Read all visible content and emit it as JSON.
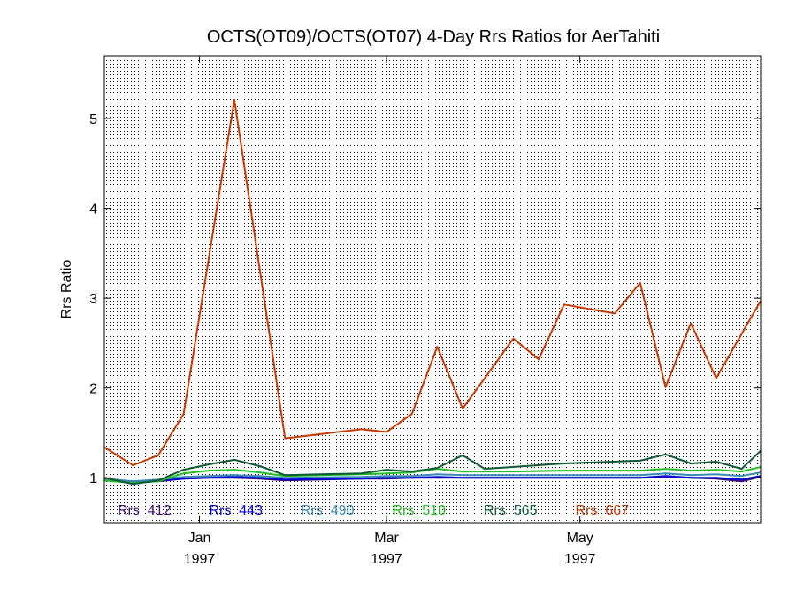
{
  "chart_data": {
    "type": "line",
    "title": "OCTS(OT09)/OCTS(OT07) 4-Day Rrs Ratios for AerTahiti",
    "ylabel": "Rrs Ratio",
    "xlabel": "",
    "xlim": [
      "1996-12-02",
      "1997-06-27"
    ],
    "ylim": [
      0.5,
      5.7
    ],
    "grid": true,
    "legend_position": "bottom",
    "x_ticks": [
      {
        "date": "1997-01-01",
        "month": "Jan",
        "year": "1997"
      },
      {
        "date": "1997-03-01",
        "month": "Mar",
        "year": "1997"
      },
      {
        "date": "1997-05-01",
        "month": "May",
        "year": "1997"
      }
    ],
    "y_ticks": [
      {
        "value": 1,
        "label": "1"
      },
      {
        "value": 2,
        "label": "2"
      },
      {
        "value": 3,
        "label": "3"
      },
      {
        "value": 4,
        "label": "4"
      },
      {
        "value": 5,
        "label": "5"
      }
    ],
    "series": [
      {
        "name": "Rrs_412",
        "color": "#3a0a78",
        "points": [
          [
            "1996-12-02",
            0.98
          ],
          [
            "1996-12-11",
            0.95
          ],
          [
            "1996-12-19",
            0.96
          ],
          [
            "1996-12-27",
            0.99
          ],
          [
            "1997-01-04",
            1.0
          ],
          [
            "1997-01-12",
            1.0
          ],
          [
            "1997-01-20",
            0.99
          ],
          [
            "1997-01-28",
            0.97
          ],
          [
            "1997-02-21",
            0.99
          ],
          [
            "1997-03-01",
            0.99
          ],
          [
            "1997-03-09",
            1.0
          ],
          [
            "1997-03-17",
            1.0
          ],
          [
            "1997-03-25",
            1.0
          ],
          [
            "1997-04-10",
            1.0
          ],
          [
            "1997-04-26",
            1.0
          ],
          [
            "1997-05-20",
            1.0
          ],
          [
            "1997-05-28",
            1.01
          ],
          [
            "1997-06-05",
            1.0
          ],
          [
            "1997-06-13",
            0.99
          ],
          [
            "1997-06-21",
            0.96
          ],
          [
            "1997-06-27",
            1.01
          ]
        ]
      },
      {
        "name": "Rrs_443",
        "color": "#0000d8",
        "points": [
          [
            "1996-12-02",
            0.98
          ],
          [
            "1996-12-11",
            0.96
          ],
          [
            "1996-12-19",
            0.97
          ],
          [
            "1996-12-27",
            0.99
          ],
          [
            "1997-01-04",
            1.0
          ],
          [
            "1997-01-12",
            1.01
          ],
          [
            "1997-01-20",
            1.0
          ],
          [
            "1997-01-28",
            0.98
          ],
          [
            "1997-02-21",
            0.99
          ],
          [
            "1997-03-01",
            1.0
          ],
          [
            "1997-03-09",
            1.0
          ],
          [
            "1997-03-17",
            1.01
          ],
          [
            "1997-03-25",
            1.0
          ],
          [
            "1997-04-10",
            1.0
          ],
          [
            "1997-04-26",
            1.0
          ],
          [
            "1997-05-20",
            1.0
          ],
          [
            "1997-05-28",
            1.02
          ],
          [
            "1997-06-05",
            1.0
          ],
          [
            "1997-06-13",
            1.0
          ],
          [
            "1997-06-21",
            0.98
          ],
          [
            "1997-06-27",
            1.02
          ]
        ]
      },
      {
        "name": "Rrs_490",
        "color": "#3a8ab8",
        "points": [
          [
            "1996-12-02",
            0.99
          ],
          [
            "1996-12-11",
            0.96
          ],
          [
            "1996-12-19",
            0.98
          ],
          [
            "1996-12-27",
            1.01
          ],
          [
            "1997-01-04",
            1.02
          ],
          [
            "1997-01-12",
            1.03
          ],
          [
            "1997-01-20",
            1.02
          ],
          [
            "1997-01-28",
            1.0
          ],
          [
            "1997-02-21",
            1.01
          ],
          [
            "1997-03-01",
            1.02
          ],
          [
            "1997-03-09",
            1.02
          ],
          [
            "1997-03-17",
            1.04
          ],
          [
            "1997-03-25",
            1.03
          ],
          [
            "1997-04-10",
            1.03
          ],
          [
            "1997-04-26",
            1.03
          ],
          [
            "1997-05-20",
            1.03
          ],
          [
            "1997-05-28",
            1.05
          ],
          [
            "1997-06-05",
            1.03
          ],
          [
            "1997-06-13",
            1.04
          ],
          [
            "1997-06-21",
            1.02
          ],
          [
            "1997-06-27",
            1.06
          ]
        ]
      },
      {
        "name": "Rrs_510",
        "color": "#22c022",
        "points": [
          [
            "1996-12-02",
            0.97
          ],
          [
            "1996-12-11",
            0.94
          ],
          [
            "1996-12-19",
            0.96
          ],
          [
            "1996-12-27",
            1.05
          ],
          [
            "1997-01-04",
            1.08
          ],
          [
            "1997-01-12",
            1.09
          ],
          [
            "1997-01-20",
            1.06
          ],
          [
            "1997-01-28",
            1.02
          ],
          [
            "1997-02-21",
            1.04
          ],
          [
            "1997-03-01",
            1.05
          ],
          [
            "1997-03-09",
            1.06
          ],
          [
            "1997-03-17",
            1.1
          ],
          [
            "1997-03-25",
            1.07
          ],
          [
            "1997-04-10",
            1.07
          ],
          [
            "1997-04-26",
            1.08
          ],
          [
            "1997-05-20",
            1.08
          ],
          [
            "1997-05-28",
            1.1
          ],
          [
            "1997-06-05",
            1.08
          ],
          [
            "1997-06-13",
            1.09
          ],
          [
            "1997-06-21",
            1.07
          ],
          [
            "1997-06-27",
            1.12
          ]
        ]
      },
      {
        "name": "Rrs_565",
        "color": "#0d5a34",
        "points": [
          [
            "1996-12-02",
            1.0
          ],
          [
            "1996-12-11",
            0.93
          ],
          [
            "1996-12-19",
            0.97
          ],
          [
            "1996-12-27",
            1.09
          ],
          [
            "1997-01-04",
            1.15
          ],
          [
            "1997-01-12",
            1.2
          ],
          [
            "1997-01-20",
            1.13
          ],
          [
            "1997-01-28",
            1.03
          ],
          [
            "1997-02-21",
            1.05
          ],
          [
            "1997-03-01",
            1.09
          ],
          [
            "1997-03-09",
            1.07
          ],
          [
            "1997-03-17",
            1.11
          ],
          [
            "1997-03-25",
            1.25
          ],
          [
            "1997-04-01",
            1.1
          ],
          [
            "1997-04-26",
            1.16
          ],
          [
            "1997-05-20",
            1.19
          ],
          [
            "1997-05-28",
            1.26
          ],
          [
            "1997-06-05",
            1.16
          ],
          [
            "1997-06-13",
            1.18
          ],
          [
            "1997-06-21",
            1.1
          ],
          [
            "1997-06-27",
            1.3
          ]
        ]
      },
      {
        "name": "Rrs_667",
        "color": "#c83a00",
        "points": [
          [
            "1996-12-02",
            1.34
          ],
          [
            "1996-12-11",
            1.14
          ],
          [
            "1996-12-19",
            1.25
          ],
          [
            "1996-12-27",
            1.71
          ],
          [
            "1997-01-12",
            5.21
          ],
          [
            "1997-01-28",
            1.44
          ],
          [
            "1997-02-21",
            1.54
          ],
          [
            "1997-03-01",
            1.51
          ],
          [
            "1997-03-09",
            1.71
          ],
          [
            "1997-03-17",
            2.46
          ],
          [
            "1997-03-25",
            1.77
          ],
          [
            "1997-04-10",
            2.55
          ],
          [
            "1997-04-18",
            2.32
          ],
          [
            "1997-04-26",
            2.93
          ],
          [
            "1997-05-12",
            2.83
          ],
          [
            "1997-05-20",
            3.17
          ],
          [
            "1997-05-28",
            2.01
          ],
          [
            "1997-06-05",
            2.72
          ],
          [
            "1997-06-13",
            2.11
          ],
          [
            "1997-06-27",
            2.97
          ]
        ]
      }
    ]
  }
}
